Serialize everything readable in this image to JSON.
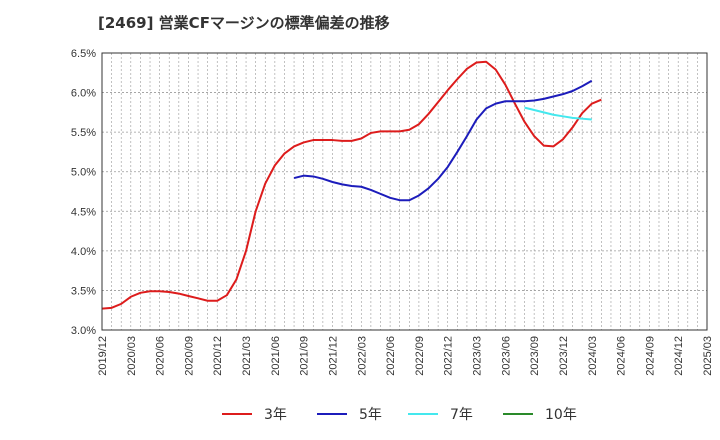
{
  "chart_data": {
    "type": "line",
    "title": "[2469]  営業CFマージンの標準偏差の推移",
    "xlabel": "",
    "ylabel": "",
    "ylim": [
      3.0,
      6.5
    ],
    "y_ticks": [
      "3.0%",
      "3.5%",
      "4.0%",
      "4.5%",
      "5.0%",
      "5.5%",
      "6.0%",
      "6.5%"
    ],
    "y_tick_values": [
      3.0,
      3.5,
      4.0,
      4.5,
      5.0,
      5.5,
      6.0,
      6.5
    ],
    "x_ticks": [
      "2019/12",
      "2020/03",
      "2020/06",
      "2020/09",
      "2020/12",
      "2021/03",
      "2021/06",
      "2021/09",
      "2021/12",
      "2022/03",
      "2022/06",
      "2022/09",
      "2022/12",
      "2023/03",
      "2023/06",
      "2023/09",
      "2023/12",
      "2024/03",
      "2024/06",
      "2024/09",
      "2024/12",
      "2025/03"
    ],
    "x_range": [
      "2019/12",
      "2025/03"
    ],
    "grid": true,
    "legend_position": "bottom",
    "series": [
      {
        "name": "3年",
        "color": "#dd1c1c",
        "start": "2019/12",
        "values": [
          3.27,
          3.28,
          3.33,
          3.42,
          3.47,
          3.49,
          3.49,
          3.48,
          3.46,
          3.43,
          3.4,
          3.37,
          3.37,
          3.44,
          3.64,
          4.0,
          4.5,
          4.85,
          5.08,
          5.23,
          5.32,
          5.37,
          5.4,
          5.4,
          5.4,
          5.39,
          5.39,
          5.42,
          5.49,
          5.51,
          5.51,
          5.51,
          5.53,
          5.6,
          5.73,
          5.88,
          6.03,
          6.17,
          6.3,
          6.38,
          6.39,
          6.29,
          6.1,
          5.86,
          5.63,
          5.45,
          5.33,
          5.32,
          5.41,
          5.56,
          5.74,
          5.86,
          5.91
        ]
      },
      {
        "name": "5年",
        "color": "#1c1cbb",
        "start": "2021/08",
        "values": [
          4.92,
          4.95,
          4.94,
          4.91,
          4.87,
          4.84,
          4.82,
          4.81,
          4.77,
          4.72,
          4.67,
          4.64,
          4.64,
          4.7,
          4.79,
          4.91,
          5.06,
          5.25,
          5.45,
          5.66,
          5.8,
          5.86,
          5.89,
          5.89,
          5.89,
          5.9,
          5.92,
          5.95,
          5.98,
          6.02,
          6.08,
          6.15
        ]
      },
      {
        "name": "7年",
        "color": "#44e8ee",
        "start": "2023/08",
        "values": [
          5.81,
          5.78,
          5.75,
          5.72,
          5.7,
          5.68,
          5.67,
          5.66
        ]
      },
      {
        "name": "10年",
        "color": "#2a8a2a",
        "start": "2024/03",
        "values": []
      }
    ]
  }
}
